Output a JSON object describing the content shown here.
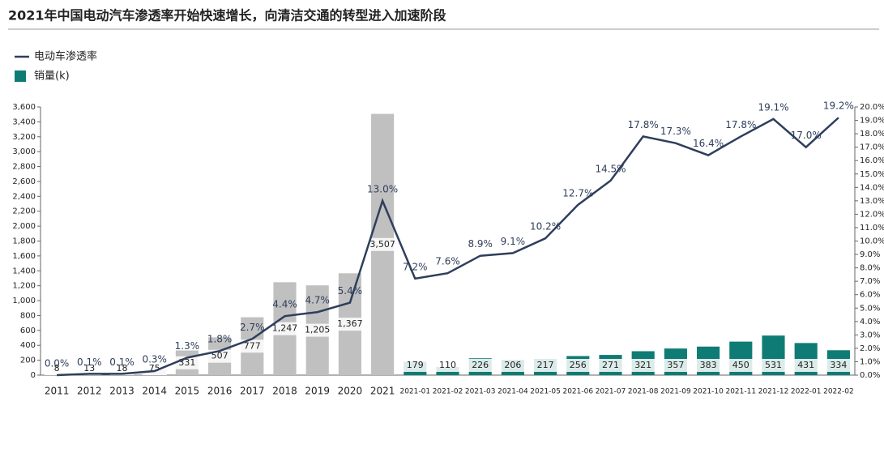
{
  "chart_data": {
    "type": "bar-line",
    "title": "2021年中国电动汽车渗透率开始快速增长，向清洁交通的转型进入加速阶段",
    "categories": [
      "2011",
      "2012",
      "2013",
      "2014",
      "2015",
      "2016",
      "2017",
      "2018",
      "2019",
      "2020",
      "2021",
      "2021-01",
      "2021-02",
      "2021-03",
      "2021-04",
      "2021-05",
      "2021-06",
      "2021-07",
      "2021-08",
      "2021-09",
      "2021-10",
      "2021-11",
      "2021-12",
      "2022-01",
      "2022-02"
    ],
    "series": [
      {
        "name": "销量(k)",
        "type": "bar",
        "color": "#0e7c74",
        "colors": [
          "#c0c0c0",
          "#c0c0c0",
          "#c0c0c0",
          "#c0c0c0",
          "#c0c0c0",
          "#c0c0c0",
          "#c0c0c0",
          "#c0c0c0",
          "#c0c0c0",
          "#c0c0c0",
          "#c0c0c0",
          "#0e7c74",
          "#0e7c74",
          "#0e7c74",
          "#0e7c74",
          "#0e7c74",
          "#0e7c74",
          "#0e7c74",
          "#0e7c74",
          "#0e7c74",
          "#0e7c74",
          "#0e7c74",
          "#0e7c74",
          "#0e7c74",
          "#0e7c74"
        ],
        "values": [
          8,
          13,
          18,
          75,
          331,
          507,
          777,
          1247,
          1205,
          1367,
          3507,
          179,
          110,
          226,
          206,
          217,
          256,
          271,
          321,
          357,
          383,
          450,
          531,
          431,
          334
        ],
        "value_labels": [
          "8",
          "13",
          "18",
          "75",
          "331",
          "507",
          "777",
          "1,247",
          "1,205",
          "1,367",
          "3,507",
          "179",
          "110",
          "226",
          "206",
          "217",
          "256",
          "271",
          "321",
          "357",
          "383",
          "450",
          "531",
          "431",
          "334"
        ]
      },
      {
        "name": "电动车渗透率",
        "type": "line",
        "axis": "y2",
        "color": "#2f3e5c",
        "values": [
          0.0,
          0.1,
          0.1,
          0.3,
          1.3,
          1.8,
          2.7,
          4.4,
          4.7,
          5.4,
          13.0,
          7.2,
          7.6,
          8.9,
          9.1,
          10.2,
          12.7,
          14.5,
          17.8,
          17.3,
          16.4,
          17.8,
          19.1,
          17.0,
          19.2
        ],
        "value_labels": [
          "0.0%",
          "0.1%",
          "0.1%",
          "0.3%",
          "1.3%",
          "1.8%",
          "2.7%",
          "4.4%",
          "4.7%",
          "5.4%",
          "13.0%",
          "7.2%",
          "7.6%",
          "8.9%",
          "9.1%",
          "10.2%",
          "12.7%",
          "14.5%",
          "17.8%",
          "17.3%",
          "16.4%",
          "17.8%",
          "19.1%",
          "17.0%",
          "19.2%"
        ]
      }
    ],
    "ylim": [
      0,
      3600
    ],
    "yticks": [
      0,
      200,
      400,
      600,
      800,
      {
        "value": 1000,
        "label": "1,000"
      },
      {
        "value": 1200,
        "label": "1,200"
      },
      {
        "value": 1400,
        "label": "1,400"
      },
      {
        "value": 1600,
        "label": "1,600"
      },
      {
        "value": 1800,
        "label": "1,800"
      },
      {
        "value": 2000,
        "label": "2,000"
      },
      {
        "value": 2200,
        "label": "2,200"
      },
      {
        "value": 2400,
        "label": "2,400"
      },
      {
        "value": 2600,
        "label": "2,600"
      },
      {
        "value": 2800,
        "label": "2,800"
      },
      {
        "value": 3000,
        "label": "3,000"
      },
      {
        "value": 3200,
        "label": "3,200"
      },
      {
        "value": 3400,
        "label": "3,400"
      },
      {
        "value": 3600,
        "label": "3,600"
      }
    ],
    "y2lim": [
      0,
      20
    ],
    "y2ticks": [
      {
        "value": 0,
        "label": "0.0%"
      },
      {
        "value": 1,
        "label": "1.0%"
      },
      {
        "value": 2,
        "label": "2.0%"
      },
      {
        "value": 3,
        "label": "3.0%"
      },
      {
        "value": 4,
        "label": "4.0%"
      },
      {
        "value": 5,
        "label": "5.0%"
      },
      {
        "value": 6,
        "label": "6.0%"
      },
      {
        "value": 7,
        "label": "7.0%"
      },
      {
        "value": 8,
        "label": "8.0%"
      },
      {
        "value": 9,
        "label": "9.0%"
      },
      {
        "value": 10,
        "label": "10.0%"
      },
      {
        "value": 11,
        "label": "11.0%"
      },
      {
        "value": 12,
        "label": "12.0%"
      },
      {
        "value": 13,
        "label": "13.0%"
      },
      {
        "value": 14,
        "label": "14.0%"
      },
      {
        "value": 15,
        "label": "15.0%"
      },
      {
        "value": 16,
        "label": "16.0%"
      },
      {
        "value": 17,
        "label": "17.0%"
      },
      {
        "value": 18,
        "label": "18.0%"
      },
      {
        "value": 19,
        "label": "19.0%"
      },
      {
        "value": 20,
        "label": "20.0%"
      }
    ],
    "legend": "top-left"
  }
}
